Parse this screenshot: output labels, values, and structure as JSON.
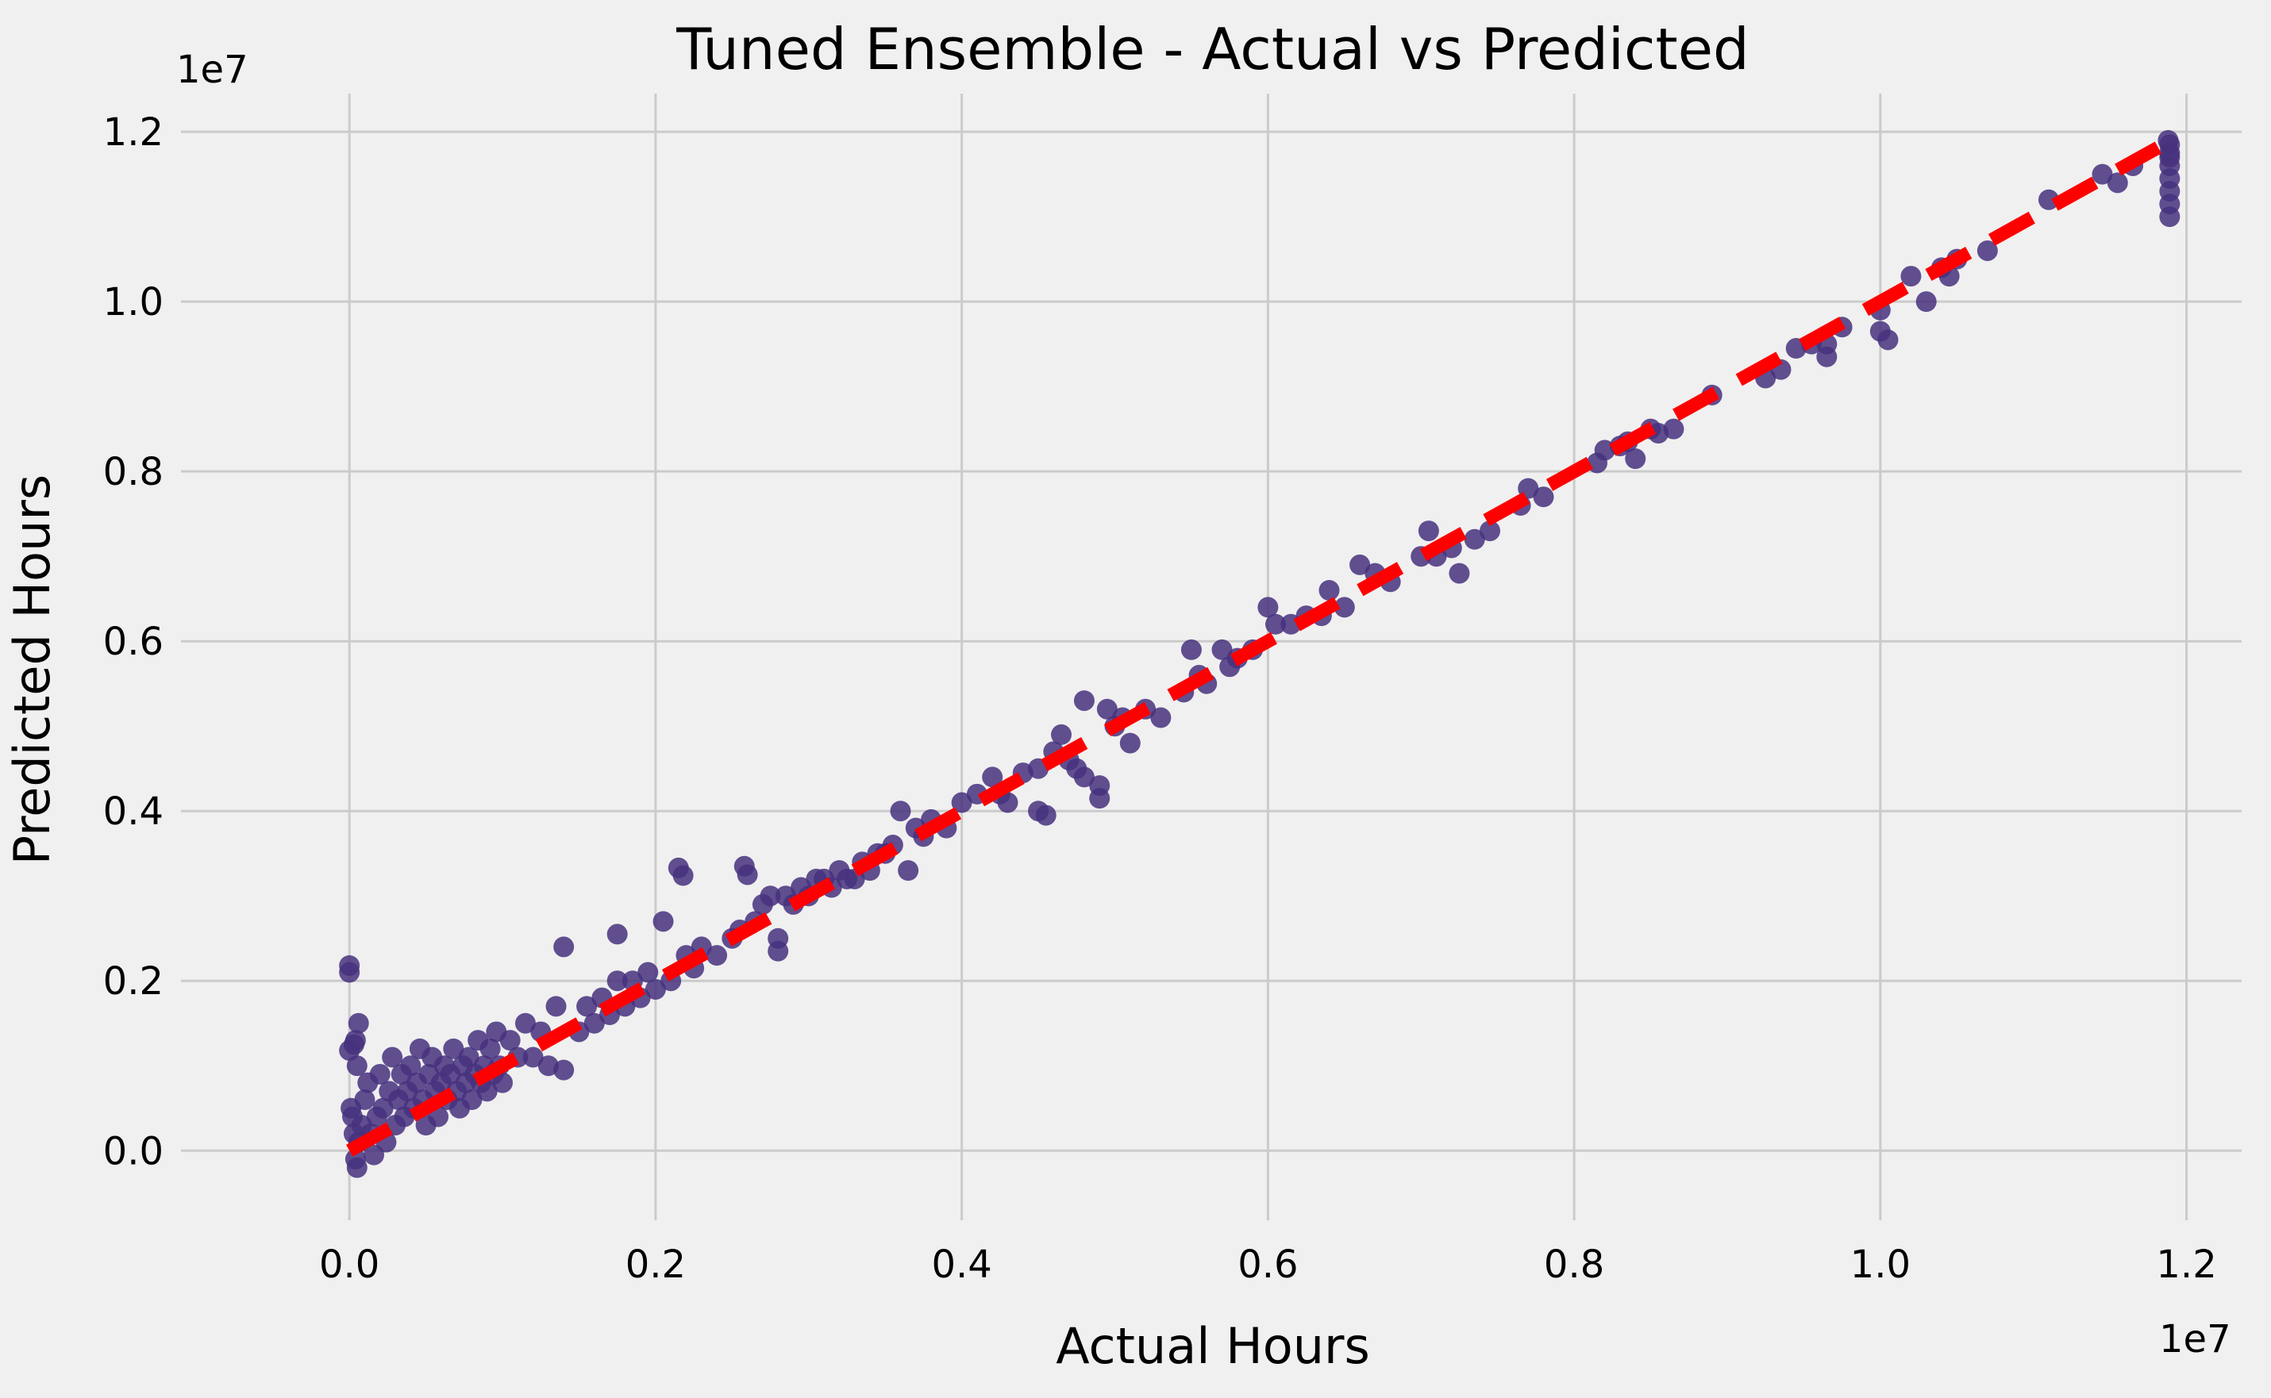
{
  "chart_data": {
    "type": "scatter",
    "title": "Tuned Ensemble - Actual vs Predicted",
    "xlabel": "Actual Hours",
    "ylabel": "Predicted Hours",
    "x_offset_label": "1e7",
    "y_offset_label": "1e7",
    "xlim": [
      -0.11,
      1.236
    ],
    "ylim": [
      -0.082,
      1.245
    ],
    "unit_scale": 10000000.0,
    "xticks": [
      0.0,
      0.2,
      0.4,
      0.6,
      0.8,
      1.0,
      1.2
    ],
    "yticks": [
      0.0,
      0.2,
      0.4,
      0.6,
      0.8,
      1.0,
      1.2
    ],
    "xtick_labels": [
      "0.0",
      "0.2",
      "0.4",
      "0.6",
      "0.8",
      "1.0",
      "1.2"
    ],
    "ytick_labels": [
      "0.0",
      "0.2",
      "0.4",
      "0.6",
      "0.8",
      "1.0",
      "1.2"
    ],
    "grid": true,
    "reference_line": {
      "x": [
        0.0,
        1.19
      ],
      "y": [
        0.0,
        1.19
      ],
      "style": "dashed",
      "color": "#ff0000"
    },
    "series": [
      {
        "marker_color": "#46317e",
        "points": [
          [
            0.0,
            0.218
          ],
          [
            0.0,
            0.21
          ],
          [
            0.0,
            0.118
          ],
          [
            0.003,
            0.125
          ],
          [
            0.004,
            0.13
          ],
          [
            0.005,
            0.1
          ],
          [
            0.006,
            0.15
          ],
          [
            0.001,
            0.05
          ],
          [
            0.002,
            0.04
          ],
          [
            0.003,
            0.02
          ],
          [
            0.004,
            -0.01
          ],
          [
            0.005,
            -0.02
          ],
          [
            0.006,
            0.01
          ],
          [
            0.008,
            0.03
          ],
          [
            0.01,
            0.06
          ],
          [
            0.012,
            0.08
          ],
          [
            0.014,
            0.02
          ],
          [
            0.016,
            -0.005
          ],
          [
            0.018,
            0.04
          ],
          [
            0.02,
            0.09
          ],
          [
            0.022,
            0.05
          ],
          [
            0.024,
            0.01
          ],
          [
            0.026,
            0.07
          ],
          [
            0.028,
            0.11
          ],
          [
            0.03,
            0.03
          ],
          [
            0.032,
            0.06
          ],
          [
            0.034,
            0.09
          ],
          [
            0.036,
            0.04
          ],
          [
            0.038,
            0.07
          ],
          [
            0.04,
            0.1
          ],
          [
            0.042,
            0.05
          ],
          [
            0.044,
            0.08
          ],
          [
            0.046,
            0.12
          ],
          [
            0.048,
            0.06
          ],
          [
            0.05,
            0.03
          ],
          [
            0.052,
            0.09
          ],
          [
            0.054,
            0.11
          ],
          [
            0.056,
            0.07
          ],
          [
            0.058,
            0.04
          ],
          [
            0.06,
            0.08
          ],
          [
            0.062,
            0.1
          ],
          [
            0.064,
            0.06
          ],
          [
            0.066,
            0.09
          ],
          [
            0.068,
            0.12
          ],
          [
            0.07,
            0.07
          ],
          [
            0.072,
            0.05
          ],
          [
            0.074,
            0.1
          ],
          [
            0.076,
            0.08
          ],
          [
            0.078,
            0.11
          ],
          [
            0.08,
            0.06
          ],
          [
            0.082,
            0.09
          ],
          [
            0.084,
            0.13
          ],
          [
            0.086,
            0.08
          ],
          [
            0.088,
            0.1
          ],
          [
            0.09,
            0.07
          ],
          [
            0.092,
            0.12
          ],
          [
            0.094,
            0.09
          ],
          [
            0.096,
            0.14
          ],
          [
            0.098,
            0.1
          ],
          [
            0.1,
            0.08
          ],
          [
            0.105,
            0.13
          ],
          [
            0.11,
            0.11
          ],
          [
            0.115,
            0.15
          ],
          [
            0.12,
            0.11
          ],
          [
            0.125,
            0.14
          ],
          [
            0.13,
            0.1
          ],
          [
            0.135,
            0.17
          ],
          [
            0.14,
            0.24
          ],
          [
            0.14,
            0.095
          ],
          [
            0.15,
            0.14
          ],
          [
            0.155,
            0.17
          ],
          [
            0.16,
            0.15
          ],
          [
            0.165,
            0.18
          ],
          [
            0.17,
            0.16
          ],
          [
            0.175,
            0.2
          ],
          [
            0.175,
            0.255
          ],
          [
            0.18,
            0.17
          ],
          [
            0.185,
            0.2
          ],
          [
            0.19,
            0.18
          ],
          [
            0.195,
            0.21
          ],
          [
            0.2,
            0.19
          ],
          [
            0.205,
            0.27
          ],
          [
            0.21,
            0.2
          ],
          [
            0.215,
            0.333
          ],
          [
            0.218,
            0.324
          ],
          [
            0.22,
            0.23
          ],
          [
            0.225,
            0.215
          ],
          [
            0.23,
            0.24
          ],
          [
            0.24,
            0.23
          ],
          [
            0.25,
            0.25
          ],
          [
            0.255,
            0.26
          ],
          [
            0.258,
            0.335
          ],
          [
            0.26,
            0.325
          ],
          [
            0.265,
            0.27
          ],
          [
            0.27,
            0.29
          ],
          [
            0.275,
            0.3
          ],
          [
            0.28,
            0.25
          ],
          [
            0.28,
            0.235
          ],
          [
            0.285,
            0.3
          ],
          [
            0.29,
            0.29
          ],
          [
            0.295,
            0.31
          ],
          [
            0.3,
            0.3
          ],
          [
            0.305,
            0.32
          ],
          [
            0.31,
            0.32
          ],
          [
            0.315,
            0.31
          ],
          [
            0.32,
            0.33
          ],
          [
            0.325,
            0.32
          ],
          [
            0.33,
            0.32
          ],
          [
            0.335,
            0.34
          ],
          [
            0.34,
            0.33
          ],
          [
            0.345,
            0.35
          ],
          [
            0.35,
            0.35
          ],
          [
            0.355,
            0.36
          ],
          [
            0.36,
            0.4
          ],
          [
            0.365,
            0.33
          ],
          [
            0.37,
            0.38
          ],
          [
            0.375,
            0.37
          ],
          [
            0.38,
            0.39
          ],
          [
            0.39,
            0.38
          ],
          [
            0.4,
            0.41
          ],
          [
            0.41,
            0.42
          ],
          [
            0.42,
            0.44
          ],
          [
            0.425,
            0.42
          ],
          [
            0.43,
            0.41
          ],
          [
            0.44,
            0.445
          ],
          [
            0.45,
            0.45
          ],
          [
            0.45,
            0.4
          ],
          [
            0.455,
            0.395
          ],
          [
            0.46,
            0.47
          ],
          [
            0.465,
            0.49
          ],
          [
            0.47,
            0.46
          ],
          [
            0.475,
            0.45
          ],
          [
            0.48,
            0.53
          ],
          [
            0.48,
            0.44
          ],
          [
            0.49,
            0.43
          ],
          [
            0.49,
            0.415
          ],
          [
            0.495,
            0.52
          ],
          [
            0.5,
            0.5
          ],
          [
            0.505,
            0.51
          ],
          [
            0.51,
            0.48
          ],
          [
            0.52,
            0.52
          ],
          [
            0.53,
            0.51
          ],
          [
            0.545,
            0.54
          ],
          [
            0.55,
            0.59
          ],
          [
            0.555,
            0.56
          ],
          [
            0.56,
            0.55
          ],
          [
            0.57,
            0.59
          ],
          [
            0.575,
            0.57
          ],
          [
            0.58,
            0.58
          ],
          [
            0.59,
            0.59
          ],
          [
            0.6,
            0.64
          ],
          [
            0.605,
            0.62
          ],
          [
            0.615,
            0.62
          ],
          [
            0.625,
            0.63
          ],
          [
            0.635,
            0.63
          ],
          [
            0.64,
            0.66
          ],
          [
            0.65,
            0.64
          ],
          [
            0.66,
            0.69
          ],
          [
            0.67,
            0.68
          ],
          [
            0.68,
            0.67
          ],
          [
            0.7,
            0.7
          ],
          [
            0.705,
            0.73
          ],
          [
            0.71,
            0.7
          ],
          [
            0.72,
            0.71
          ],
          [
            0.725,
            0.68
          ],
          [
            0.735,
            0.72
          ],
          [
            0.745,
            0.73
          ],
          [
            0.765,
            0.76
          ],
          [
            0.77,
            0.78
          ],
          [
            0.78,
            0.77
          ],
          [
            0.815,
            0.81
          ],
          [
            0.82,
            0.825
          ],
          [
            0.83,
            0.83
          ],
          [
            0.835,
            0.835
          ],
          [
            0.84,
            0.815
          ],
          [
            0.85,
            0.85
          ],
          [
            0.855,
            0.845
          ],
          [
            0.865,
            0.85
          ],
          [
            0.89,
            0.89
          ],
          [
            0.925,
            0.91
          ],
          [
            0.935,
            0.92
          ],
          [
            0.945,
            0.945
          ],
          [
            0.955,
            0.95
          ],
          [
            0.965,
            0.95
          ],
          [
            0.965,
            0.935
          ],
          [
            0.975,
            0.97
          ],
          [
            1.0,
            0.99
          ],
          [
            1.0,
            0.965
          ],
          [
            1.005,
            0.955
          ],
          [
            1.02,
            1.03
          ],
          [
            1.03,
            1.0
          ],
          [
            1.04,
            1.04
          ],
          [
            1.045,
            1.03
          ],
          [
            1.05,
            1.05
          ],
          [
            1.07,
            1.06
          ],
          [
            1.11,
            1.12
          ],
          [
            1.145,
            1.15
          ],
          [
            1.155,
            1.14
          ],
          [
            1.165,
            1.16
          ],
          [
            1.188,
            1.19
          ],
          [
            1.189,
            1.175
          ],
          [
            1.189,
            1.16
          ],
          [
            1.189,
            1.145
          ],
          [
            1.189,
            1.13
          ],
          [
            1.189,
            1.115
          ],
          [
            1.189,
            1.1
          ],
          [
            1.189,
            1.185
          ],
          [
            1.189,
            1.17
          ]
        ]
      }
    ]
  }
}
